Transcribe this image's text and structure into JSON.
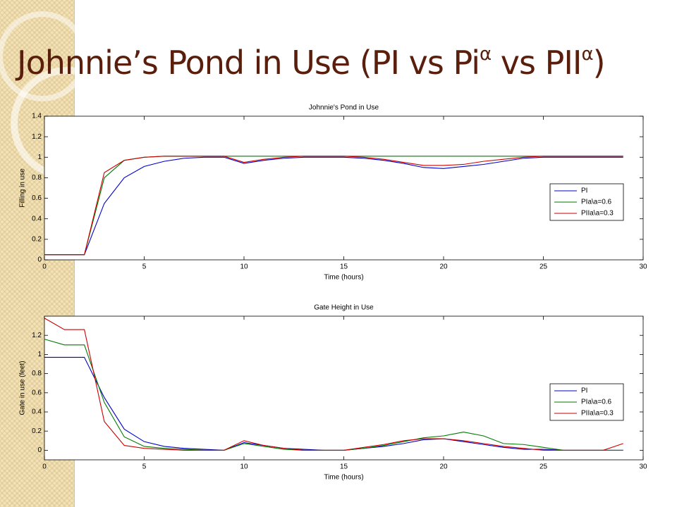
{
  "slide_title": {
    "parts": [
      "Johnnie’s Pond in Use (PI vs Pi",
      "α",
      " vs PII",
      "α",
      ")"
    ]
  },
  "chart_data": [
    {
      "type": "line",
      "title": "Johnnie's Pond in Use",
      "xlabel": "Time (hours)",
      "ylabel": "Filling in use",
      "x": [
        0,
        1,
        2,
        3,
        4,
        5,
        6,
        7,
        8,
        9,
        10,
        11,
        12,
        13,
        14,
        15,
        16,
        17,
        18,
        19,
        20,
        21,
        22,
        23,
        24,
        25,
        26,
        27,
        28,
        29
      ],
      "xlim": [
        0,
        30
      ],
      "xticks": [
        0,
        5,
        10,
        15,
        20,
        25,
        30
      ],
      "ylim": [
        0,
        1.4
      ],
      "yticks": [
        0,
        0.2,
        0.4,
        0.6,
        0.8,
        1,
        1.2,
        1.4
      ],
      "legend": "right",
      "series": [
        {
          "name": "PI",
          "color": "#0000cc",
          "values": [
            0.05,
            0.05,
            0.05,
            0.55,
            0.8,
            0.91,
            0.96,
            0.99,
            1.0,
            1.0,
            0.94,
            0.97,
            0.99,
            1.0,
            1.0,
            1.0,
            0.99,
            0.97,
            0.94,
            0.9,
            0.89,
            0.91,
            0.93,
            0.96,
            0.99,
            1.0,
            1.0,
            1.0,
            1.0,
            1.0
          ]
        },
        {
          "name": "PIa\\a=0.6",
          "color": "#007a00",
          "values": [
            0.05,
            0.05,
            0.05,
            0.8,
            0.97,
            1.0,
            1.01,
            1.01,
            1.01,
            1.01,
            1.01,
            1.01,
            1.01,
            1.01,
            1.01,
            1.01,
            1.01,
            1.01,
            1.01,
            1.01,
            1.01,
            1.01,
            1.01,
            1.01,
            1.01,
            1.01,
            1.01,
            1.01,
            1.01,
            1.01
          ]
        },
        {
          "name": "PIIa\\a=0.3",
          "color": "#cc0000",
          "values": [
            0.05,
            0.05,
            0.05,
            0.85,
            0.97,
            1.0,
            1.01,
            1.01,
            1.01,
            1.01,
            0.95,
            0.98,
            1.0,
            1.01,
            1.01,
            1.01,
            1.0,
            0.98,
            0.95,
            0.92,
            0.92,
            0.93,
            0.96,
            0.98,
            1.0,
            1.01,
            1.01,
            1.01,
            1.01,
            1.01
          ]
        }
      ]
    },
    {
      "type": "line",
      "title": "Gate Height in Use",
      "xlabel": "Time (hours)",
      "ylabel": "Gate in use (feet)",
      "x": [
        0,
        1,
        2,
        3,
        4,
        5,
        6,
        7,
        8,
        9,
        10,
        11,
        12,
        13,
        14,
        15,
        16,
        17,
        18,
        19,
        20,
        21,
        22,
        23,
        24,
        25,
        26,
        27,
        28,
        29
      ],
      "xlim": [
        0,
        30
      ],
      "xticks": [
        0,
        5,
        10,
        15,
        20,
        25,
        30
      ],
      "ylim": [
        -0.1,
        1.4
      ],
      "yticks": [
        0,
        0.2,
        0.4,
        0.6,
        0.8,
        1,
        1.2
      ],
      "legend": "right",
      "series": [
        {
          "name": "PI",
          "color": "#0000cc",
          "values": [
            0.97,
            0.97,
            0.97,
            0.55,
            0.22,
            0.09,
            0.04,
            0.02,
            0.01,
            0.0,
            0.08,
            0.05,
            0.02,
            0.01,
            0.0,
            0.0,
            0.02,
            0.04,
            0.07,
            0.11,
            0.12,
            0.09,
            0.06,
            0.03,
            0.01,
            0.01,
            0.0,
            0.0,
            0.0,
            0.0
          ]
        },
        {
          "name": "PIa\\a=0.6",
          "color": "#007a00",
          "values": [
            1.16,
            1.1,
            1.1,
            0.5,
            0.14,
            0.04,
            0.02,
            0.01,
            0.0,
            0.0,
            0.07,
            0.04,
            0.01,
            0.0,
            0.0,
            0.0,
            0.02,
            0.05,
            0.09,
            0.13,
            0.15,
            0.19,
            0.15,
            0.07,
            0.06,
            0.03,
            0.0,
            0.0,
            0.0,
            0.0
          ]
        },
        {
          "name": "PIIa\\a=0.3",
          "color": "#cc0000",
          "values": [
            1.38,
            1.26,
            1.26,
            0.3,
            0.05,
            0.02,
            0.01,
            0.0,
            0.0,
            0.0,
            0.1,
            0.05,
            0.02,
            0.0,
            0.0,
            0.0,
            0.03,
            0.06,
            0.1,
            0.12,
            0.12,
            0.1,
            0.07,
            0.04,
            0.02,
            0.0,
            0.0,
            0.0,
            0.0,
            0.07
          ]
        }
      ]
    }
  ]
}
